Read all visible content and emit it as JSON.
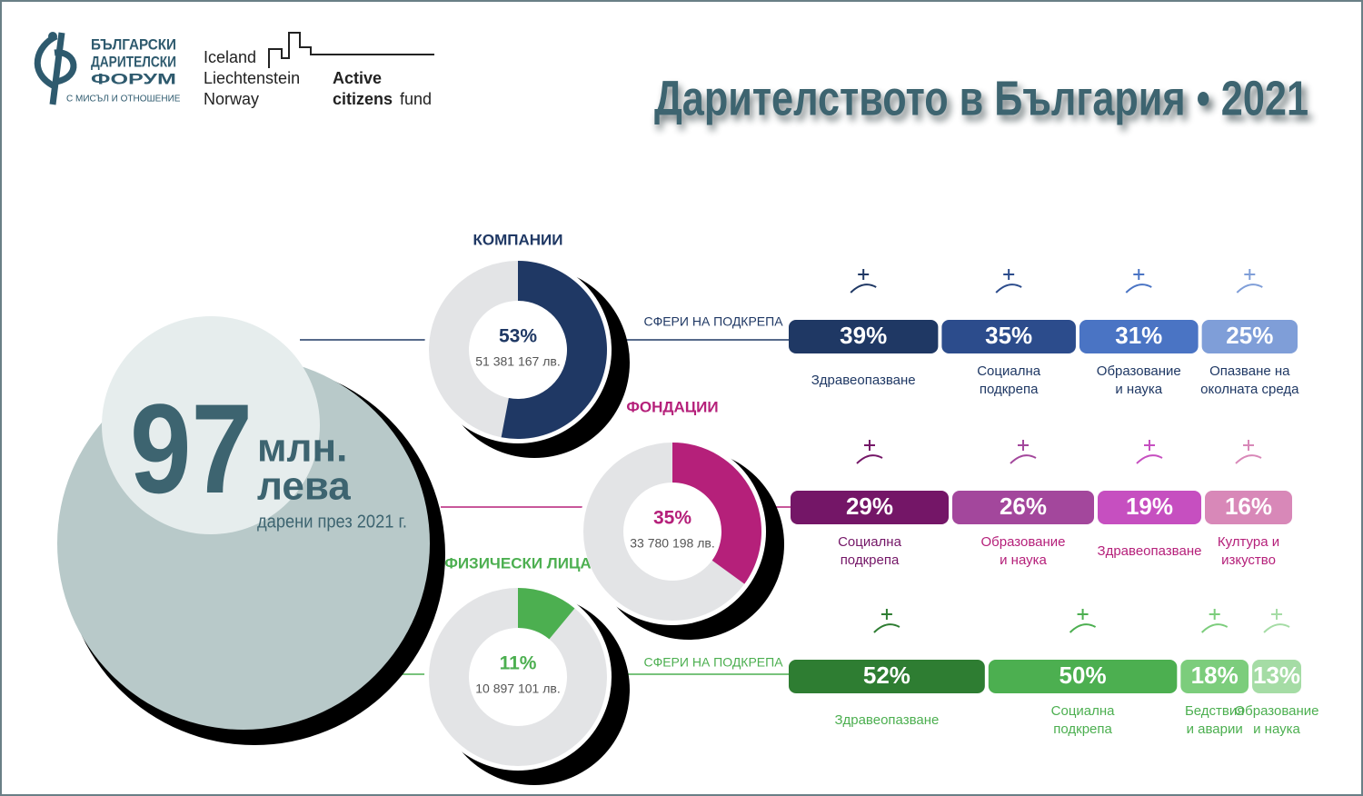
{
  "logos": {
    "forum": [
      "БЪЛГАРСКИ",
      "ДАРИТЕЛСКИ",
      "ФОРУМ"
    ],
    "forum_tagline": "С МИСЪЛ И ОТНОШЕНИЕ",
    "donors": [
      "Iceland",
      "Liechtenstein",
      "Norway"
    ],
    "fund": [
      "Active",
      "citizens",
      "fund"
    ]
  },
  "title": "Дарителството в България • 2021",
  "total": {
    "number": "97",
    "unit": [
      "млн.",
      "лева"
    ],
    "caption": "дарени през 2021 г."
  },
  "groups": [
    {
      "name": "КОМПАНИИ",
      "share": 53,
      "share_label": "53%",
      "amount": "51 381 167 лв.",
      "color": "#1f3864",
      "spheres_label": "СФЕРИ НА ПОДКРЕПА",
      "spheres": [
        {
          "value": 39,
          "label": "39%",
          "name": [
            "Здравеопазване"
          ],
          "color": "#1f3864"
        },
        {
          "value": 35,
          "label": "35%",
          "name": [
            "Социална",
            "подкрепа"
          ],
          "color": "#2c4c8c"
        },
        {
          "value": 31,
          "label": "31%",
          "name": [
            "Образование",
            "и наука"
          ],
          "color": "#4a74c4"
        },
        {
          "value": 25,
          "label": "25%",
          "name": [
            "Опазване на",
            "околната среда"
          ],
          "color": "#7f9ed8"
        }
      ]
    },
    {
      "name": "ФОНДАЦИИ",
      "share": 35,
      "share_label": "35%",
      "amount": "33 780 198 лв.",
      "color": "#b5207a",
      "spheres": [
        {
          "value": 29,
          "label": "29%",
          "name": [
            "Социална",
            "подкрепа"
          ],
          "color": "#741667"
        },
        {
          "value": 26,
          "label": "26%",
          "name": [
            "Образование",
            "и наука"
          ],
          "color": "#a3479c"
        },
        {
          "value": 19,
          "label": "19%",
          "name": [
            "Здравеопазване"
          ],
          "color": "#c64fc0"
        },
        {
          "value": 16,
          "label": "16%",
          "name": [
            "Култура и",
            "изкуство"
          ],
          "color": "#d888b8"
        }
      ]
    },
    {
      "name": "ФИЗИЧЕСКИ ЛИЦА",
      "share": 11,
      "share_label": "11%",
      "amount": "10 897 101 лв.",
      "color": "#4caf50",
      "spheres_label": "СФЕРИ НА ПОДКРЕПА",
      "spheres": [
        {
          "value": 52,
          "label": "52%",
          "name": [
            "Здравеопазване"
          ],
          "color": "#2e7d32"
        },
        {
          "value": 50,
          "label": "50%",
          "name": [
            "Социална",
            "подкрепа"
          ],
          "color": "#4caf50"
        },
        {
          "value": 18,
          "label": "18%",
          "name": [
            "Бедствия",
            "и аварии"
          ],
          "color": "#7ccd7c"
        },
        {
          "value": 13,
          "label": "13%",
          "name": [
            "Образование",
            "и наука"
          ],
          "color": "#a5dca5"
        }
      ]
    }
  ]
}
